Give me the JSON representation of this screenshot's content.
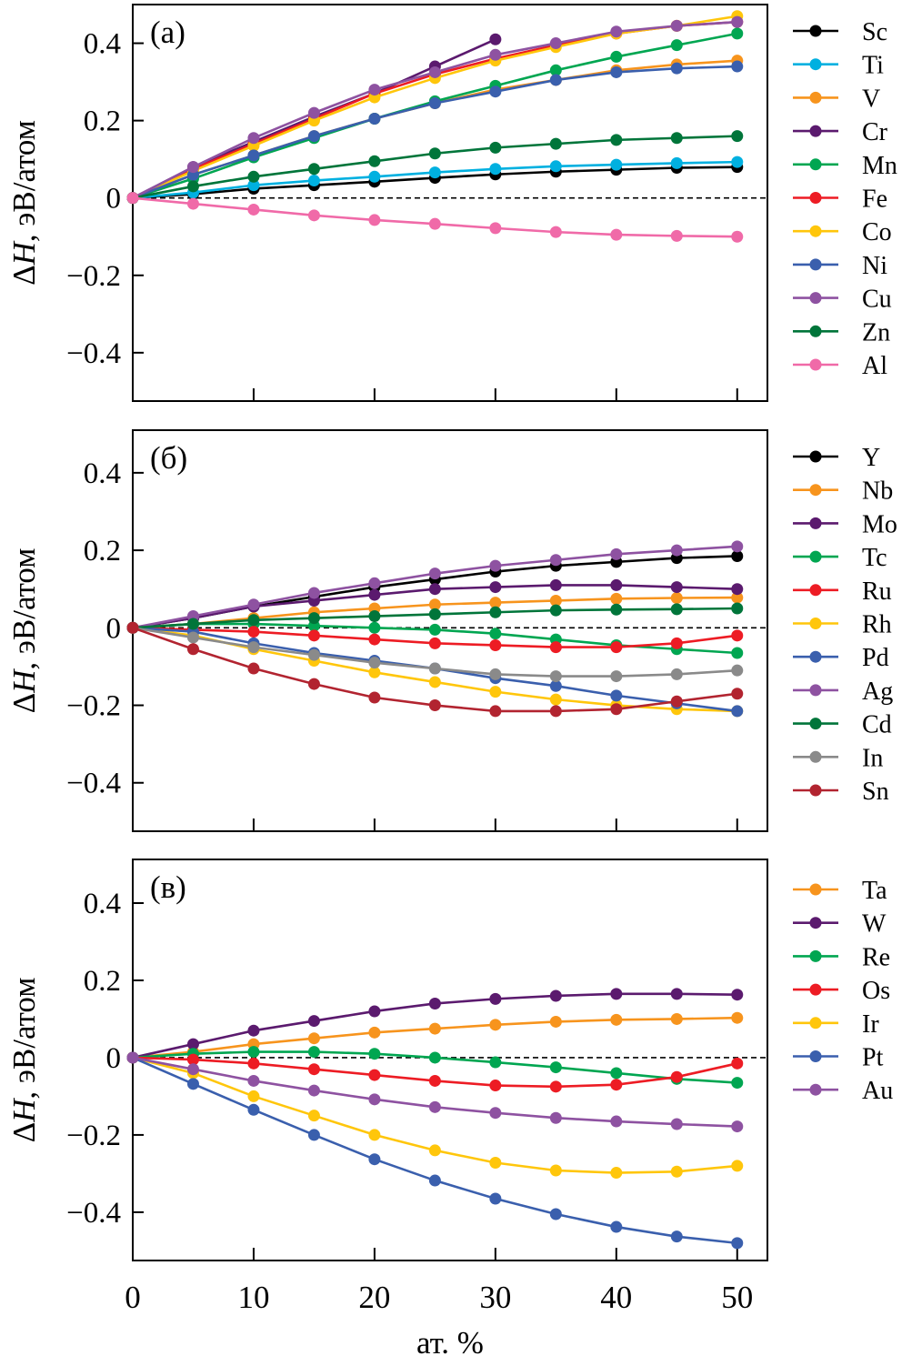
{
  "chart_data": {
    "shared": {
      "x": [
        0,
        5,
        10,
        15,
        20,
        25,
        30,
        35,
        40,
        45,
        50
      ],
      "xlabel": "ат. %",
      "xticks": [
        0,
        10,
        20,
        30,
        40,
        50
      ],
      "xlim": [
        0,
        52.5
      ],
      "ylabel_prefix": "Δ",
      "ylabel_var": "H",
      "ylabel_suffix": ", эВ/атом",
      "yticks": [
        0.4,
        0.2,
        0,
        -0.2,
        -0.4
      ],
      "ytick_labels": [
        "0.4",
        "0.2",
        "0",
        "−0.2",
        "−0.4"
      ],
      "xtick_labels": [
        "0",
        "10",
        "20",
        "30",
        "40",
        "50"
      ],
      "reference_line": {
        "y": 0,
        "style": "dashed"
      },
      "legend_placement": "right, outside",
      "grid": false
    },
    "panels": [
      {
        "type": "line",
        "panel_label": "(a)",
        "ylim": [
          -0.525,
          0.5
        ],
        "series": [
          {
            "name": "Sc",
            "color": "#000000",
            "values": [
              0,
              0.01,
              0.024,
              0.033,
              0.042,
              0.052,
              0.061,
              0.068,
              0.073,
              0.078,
              0.08
            ]
          },
          {
            "name": "Ti",
            "color": "#00b0e0",
            "values": [
              0,
              0.014,
              0.033,
              0.045,
              0.055,
              0.066,
              0.075,
              0.082,
              0.086,
              0.09,
              0.093
            ]
          },
          {
            "name": "V",
            "color": "#f7941d",
            "values": [
              0,
              0.06,
              0.11,
              0.16,
              0.205,
              0.245,
              0.28,
              0.305,
              0.33,
              0.345,
              0.355
            ]
          },
          {
            "name": "Cr",
            "color": "#5b1a6e",
            "values": [
              0,
              0.08,
              0.145,
              0.21,
              0.27,
              0.34,
              0.41
            ]
          },
          {
            "name": "Mn",
            "color": "#00a651",
            "values": [
              0,
              0.05,
              0.105,
              0.155,
              0.205,
              0.25,
              0.29,
              0.33,
              0.365,
              0.395,
              0.425
            ]
          },
          {
            "name": "Fe",
            "color": "#ed1c24",
            "values": [
              0,
              0.075,
              0.14,
              0.205,
              0.27,
              0.32,
              0.36,
              0.395,
              0.425,
              0.445,
              0.455
            ]
          },
          {
            "name": "Co",
            "color": "#ffc60b",
            "values": [
              0,
              0.07,
              0.135,
              0.2,
              0.26,
              0.31,
              0.355,
              0.39,
              0.425,
              0.445,
              0.47
            ]
          },
          {
            "name": "Ni",
            "color": "#3a5fad",
            "values": [
              0,
              0.06,
              0.11,
              0.16,
              0.205,
              0.245,
              0.275,
              0.305,
              0.325,
              0.335,
              0.34
            ]
          },
          {
            "name": "Cu",
            "color": "#8e52a1",
            "values": [
              0,
              0.08,
              0.155,
              0.22,
              0.28,
              0.325,
              0.37,
              0.4,
              0.43,
              0.445,
              0.455
            ]
          },
          {
            "name": "Zn",
            "color": "#00753a",
            "values": [
              0,
              0.03,
              0.055,
              0.075,
              0.095,
              0.115,
              0.13,
              0.14,
              0.15,
              0.155,
              0.16
            ]
          },
          {
            "name": "Al",
            "color": "#f06aa8",
            "values": [
              0,
              -0.015,
              -0.03,
              -0.045,
              -0.057,
              -0.067,
              -0.078,
              -0.088,
              -0.095,
              -0.098,
              -0.1
            ]
          }
        ]
      },
      {
        "type": "line",
        "panel_label": "(б)",
        "ylim": [
          -0.525,
          0.51
        ],
        "series": [
          {
            "name": "Y",
            "color": "#000000",
            "values": [
              0,
              0.025,
              0.055,
              0.08,
              0.105,
              0.125,
              0.145,
              0.16,
              0.17,
              0.18,
              0.185
            ]
          },
          {
            "name": "Nb",
            "color": "#f7941d",
            "values": [
              0,
              0.01,
              0.025,
              0.04,
              0.05,
              0.06,
              0.065,
              0.07,
              0.075,
              0.077,
              0.078
            ]
          },
          {
            "name": "Mo",
            "color": "#5b1a6e",
            "values": [
              0,
              0.025,
              0.055,
              0.07,
              0.085,
              0.1,
              0.105,
              0.11,
              0.11,
              0.105,
              0.1
            ]
          },
          {
            "name": "Tc",
            "color": "#00a651",
            "values": [
              0,
              0.01,
              0.01,
              0.005,
              0,
              -0.005,
              -0.015,
              -0.03,
              -0.045,
              -0.055,
              -0.065
            ]
          },
          {
            "name": "Ru",
            "color": "#ed1c24",
            "values": [
              0,
              -0.005,
              -0.01,
              -0.02,
              -0.03,
              -0.04,
              -0.045,
              -0.05,
              -0.05,
              -0.04,
              -0.02
            ]
          },
          {
            "name": "Rh",
            "color": "#ffc60b",
            "values": [
              0,
              -0.02,
              -0.055,
              -0.085,
              -0.115,
              -0.14,
              -0.165,
              -0.185,
              -0.2,
              -0.21,
              -0.215
            ]
          },
          {
            "name": "Pd",
            "color": "#3a5fad",
            "values": [
              0,
              -0.01,
              -0.04,
              -0.065,
              -0.085,
              -0.105,
              -0.13,
              -0.15,
              -0.175,
              -0.195,
              -0.215
            ]
          },
          {
            "name": "Ag",
            "color": "#8e52a1",
            "values": [
              0,
              0.03,
              0.06,
              0.09,
              0.115,
              0.14,
              0.16,
              0.175,
              0.19,
              0.2,
              0.21
            ]
          },
          {
            "name": "Cd",
            "color": "#00753a",
            "values": [
              0,
              0.01,
              0.02,
              0.025,
              0.03,
              0.035,
              0.04,
              0.045,
              0.047,
              0.048,
              0.05
            ]
          },
          {
            "name": "In",
            "color": "#8a8a8a",
            "values": [
              0,
              -0.025,
              -0.05,
              -0.07,
              -0.09,
              -0.105,
              -0.12,
              -0.125,
              -0.125,
              -0.12,
              -0.11
            ]
          },
          {
            "name": "Sn",
            "color": "#b22430",
            "values": [
              0,
              -0.055,
              -0.105,
              -0.145,
              -0.18,
              -0.2,
              -0.215,
              -0.215,
              -0.21,
              -0.19,
              -0.17
            ]
          }
        ]
      },
      {
        "type": "line",
        "panel_label": "(в)",
        "ylim": [
          -0.525,
          0.513
        ],
        "series": [
          {
            "name": "Ta",
            "color": "#f7941d",
            "values": [
              0,
              0.015,
              0.035,
              0.05,
              0.065,
              0.075,
              0.085,
              0.093,
              0.098,
              0.1,
              0.103
            ]
          },
          {
            "name": "W",
            "color": "#5b1a6e",
            "values": [
              0,
              0.035,
              0.07,
              0.095,
              0.12,
              0.14,
              0.152,
              0.16,
              0.165,
              0.165,
              0.163
            ]
          },
          {
            "name": "Re",
            "color": "#00a651",
            "values": [
              0,
              0.01,
              0.015,
              0.015,
              0.01,
              0,
              -0.012,
              -0.025,
              -0.04,
              -0.055,
              -0.065
            ]
          },
          {
            "name": "Os",
            "color": "#ed1c24",
            "values": [
              0,
              -0.005,
              -0.015,
              -0.03,
              -0.045,
              -0.06,
              -0.072,
              -0.075,
              -0.07,
              -0.05,
              -0.015
            ]
          },
          {
            "name": "Ir",
            "color": "#ffc60b",
            "values": [
              0,
              -0.04,
              -0.1,
              -0.15,
              -0.2,
              -0.24,
              -0.272,
              -0.292,
              -0.298,
              -0.295,
              -0.28
            ]
          },
          {
            "name": "Pt",
            "color": "#3a5fad",
            "values": [
              0,
              -0.068,
              -0.135,
              -0.2,
              -0.263,
              -0.318,
              -0.365,
              -0.405,
              -0.438,
              -0.463,
              -0.48
            ]
          },
          {
            "name": "Au",
            "color": "#8e52a1",
            "values": [
              0,
              -0.03,
              -0.06,
              -0.085,
              -0.108,
              -0.128,
              -0.143,
              -0.156,
              -0.165,
              -0.172,
              -0.178
            ]
          }
        ]
      }
    ]
  }
}
